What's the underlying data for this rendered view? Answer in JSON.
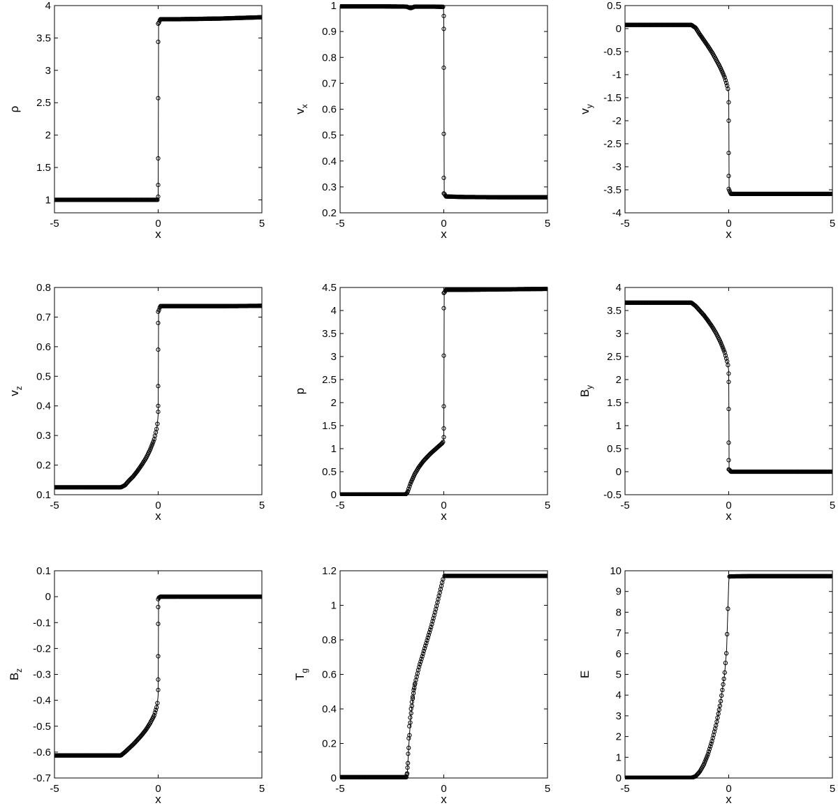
{
  "chart_data": [
    {
      "type": "line",
      "xlabel": "x",
      "ylabel": "ρ",
      "ylabel_sub": "",
      "xlim": [
        -5,
        5
      ],
      "ylim": [
        0.8,
        4
      ],
      "xticks": [
        "-5",
        "0",
        "5"
      ],
      "yticks": [
        "1",
        "1.5",
        "2",
        "2.5",
        "3",
        "3.5",
        "4"
      ],
      "ytick_values": [
        1,
        1.5,
        2,
        2.5,
        3,
        3.5,
        4
      ],
      "series": [
        {
          "x": [
            -5,
            -3,
            -1,
            -0.5,
            -0.1,
            -0.02,
            0,
            0.02,
            0.1,
            1,
            3,
            5
          ],
          "y": [
            1.0,
            1.0,
            1.0,
            1.0,
            1.0,
            1.0,
            1.05,
            3.72,
            3.79,
            3.79,
            3.8,
            3.82
          ]
        }
      ],
      "markers": [
        {
          "x": 0,
          "y": 1.05
        },
        {
          "x": 0,
          "y": 1.23
        },
        {
          "x": 0,
          "y": 1.64
        },
        {
          "x": 0,
          "y": 2.57
        },
        {
          "x": 0,
          "y": 3.44
        },
        {
          "x": 0,
          "y": 3.72
        }
      ]
    },
    {
      "type": "line",
      "xlabel": "x",
      "ylabel": "v",
      "ylabel_sub": "x",
      "xlim": [
        -5,
        5
      ],
      "ylim": [
        0.2,
        1.0
      ],
      "xticks": [
        "-5",
        "0",
        "5"
      ],
      "yticks": [
        "0.2",
        "0.3",
        "0.4",
        "0.5",
        "0.6",
        "0.7",
        "0.8",
        "0.9",
        "1"
      ],
      "ytick_values": [
        0.2,
        0.3,
        0.4,
        0.5,
        0.6,
        0.7,
        0.8,
        0.9,
        1.0
      ],
      "series": [
        {
          "x": [
            -5,
            -3,
            -1.8,
            -1.6,
            -1.4,
            -0.5,
            -0.02,
            0,
            0.02,
            0.1,
            1,
            3,
            5
          ],
          "y": [
            0.997,
            0.997,
            0.996,
            0.99,
            0.996,
            0.996,
            0.995,
            0.96,
            0.275,
            0.263,
            0.261,
            0.26,
            0.26
          ]
        }
      ],
      "markers": [
        {
          "x": 0,
          "y": 0.96
        },
        {
          "x": 0,
          "y": 0.91
        },
        {
          "x": 0,
          "y": 0.76
        },
        {
          "x": 0,
          "y": 0.505
        },
        {
          "x": 0,
          "y": 0.335
        },
        {
          "x": 0,
          "y": 0.275
        }
      ]
    },
    {
      "type": "line",
      "xlabel": "x",
      "ylabel": "v",
      "ylabel_sub": "y",
      "xlim": [
        -5,
        5
      ],
      "ylim": [
        -4,
        0.5
      ],
      "xticks": [
        "-5",
        "0",
        "5"
      ],
      "yticks": [
        "-4",
        "-3.5",
        "-3",
        "-2.5",
        "-2",
        "-1.5",
        "-1",
        "-0.5",
        "0",
        "0.5"
      ],
      "ytick_values": [
        -4,
        -3.5,
        -3,
        -2.5,
        -2,
        -1.5,
        -1,
        -0.5,
        0,
        0.5
      ],
      "series": [
        {
          "x": [
            -5,
            -3,
            -1.8,
            -1.6,
            -1.4,
            -1.2,
            -1.0,
            -0.8,
            -0.6,
            -0.4,
            -0.2,
            -0.05,
            0,
            0.02,
            0.1,
            1,
            3,
            5
          ],
          "y": [
            0.08,
            0.08,
            0.08,
            0.02,
            -0.12,
            -0.25,
            -0.38,
            -0.52,
            -0.68,
            -0.85,
            -1.05,
            -1.28,
            -1.4,
            -3.5,
            -3.59,
            -3.59,
            -3.59,
            -3.59
          ]
        }
      ],
      "markers": [
        {
          "x": 0,
          "y": -1.6
        },
        {
          "x": 0,
          "y": -2.0
        },
        {
          "x": 0,
          "y": -2.7
        },
        {
          "x": 0,
          "y": -3.2
        },
        {
          "x": 0,
          "y": -3.48
        }
      ]
    },
    {
      "type": "line",
      "xlabel": "x",
      "ylabel": "v",
      "ylabel_sub": "z",
      "xlim": [
        -5,
        5
      ],
      "ylim": [
        0.1,
        0.8
      ],
      "xticks": [
        "-5",
        "0",
        "5"
      ],
      "yticks": [
        "0.1",
        "0.2",
        "0.3",
        "0.4",
        "0.5",
        "0.6",
        "0.7",
        "0.8"
      ],
      "ytick_values": [
        0.1,
        0.2,
        0.3,
        0.4,
        0.5,
        0.6,
        0.7,
        0.8
      ],
      "series": [
        {
          "x": [
            -5,
            -3,
            -1.8,
            -1.6,
            -1.4,
            -1.2,
            -1.0,
            -0.8,
            -0.6,
            -0.4,
            -0.2,
            -0.05,
            0,
            0.02,
            0.1,
            1,
            3,
            5
          ],
          "y": [
            0.125,
            0.125,
            0.125,
            0.132,
            0.148,
            0.162,
            0.18,
            0.2,
            0.222,
            0.25,
            0.285,
            0.33,
            0.37,
            0.72,
            0.737,
            0.737,
            0.737,
            0.738
          ]
        }
      ],
      "markers": [
        {
          "x": 0,
          "y": 0.38
        },
        {
          "x": 0,
          "y": 0.4
        },
        {
          "x": 0,
          "y": 0.467
        },
        {
          "x": 0,
          "y": 0.59
        },
        {
          "x": 0,
          "y": 0.68
        },
        {
          "x": 0,
          "y": 0.718
        }
      ]
    },
    {
      "type": "line",
      "xlabel": "x",
      "ylabel": "p",
      "ylabel_sub": "",
      "xlim": [
        -5,
        5
      ],
      "ylim": [
        0,
        4.5
      ],
      "xticks": [
        "-5",
        "0",
        "5"
      ],
      "yticks": [
        "0",
        "0.5",
        "1",
        "1.5",
        "2",
        "2.5",
        "3",
        "3.5",
        "4",
        "4.5"
      ],
      "ytick_values": [
        0,
        0.5,
        1,
        1.5,
        2,
        2.5,
        3,
        3.5,
        4,
        4.5
      ],
      "series": [
        {
          "x": [
            -5,
            -3,
            -1.85,
            -1.75,
            -1.6,
            -1.4,
            -1.2,
            -1.0,
            -0.8,
            -0.6,
            -0.4,
            -0.2,
            -0.05,
            0,
            0.02,
            0.1,
            1,
            3,
            5
          ],
          "y": [
            0.005,
            0.005,
            0.005,
            0.05,
            0.25,
            0.45,
            0.6,
            0.72,
            0.82,
            0.91,
            0.99,
            1.07,
            1.13,
            1.2,
            4.38,
            4.45,
            4.45,
            4.46,
            4.47
          ]
        }
      ],
      "markers": [
        {
          "x": 0,
          "y": 1.25
        },
        {
          "x": 0,
          "y": 1.44
        },
        {
          "x": 0,
          "y": 1.92
        },
        {
          "x": 0,
          "y": 3.02
        },
        {
          "x": 0,
          "y": 4.05
        },
        {
          "x": 0,
          "y": 4.38
        }
      ]
    },
    {
      "type": "line",
      "xlabel": "x",
      "ylabel": "B",
      "ylabel_sub": "y",
      "xlim": [
        -5,
        5
      ],
      "ylim": [
        -0.5,
        4
      ],
      "xticks": [
        "-5",
        "0",
        "5"
      ],
      "yticks": [
        "-0.5",
        "0",
        "0.5",
        "1",
        "1.5",
        "2",
        "2.5",
        "3",
        "3.5",
        "4"
      ],
      "ytick_values": [
        -0.5,
        0,
        0.5,
        1,
        1.5,
        2,
        2.5,
        3,
        3.5,
        4
      ],
      "series": [
        {
          "x": [
            -5,
            -3,
            -1.8,
            -1.6,
            -1.4,
            -1.2,
            -1.0,
            -0.8,
            -0.6,
            -0.4,
            -0.2,
            -0.05,
            0,
            0.02,
            0.1,
            1,
            3,
            5
          ],
          "y": [
            3.67,
            3.67,
            3.67,
            3.6,
            3.5,
            3.4,
            3.28,
            3.15,
            3.0,
            2.82,
            2.6,
            2.35,
            2.2,
            0.05,
            0.0,
            0.0,
            0.0,
            0.0
          ]
        }
      ],
      "markers": [
        {
          "x": 0,
          "y": 2.13
        },
        {
          "x": 0,
          "y": 1.95
        },
        {
          "x": 0,
          "y": 1.36
        },
        {
          "x": 0,
          "y": 0.63
        },
        {
          "x": 0,
          "y": 0.25
        },
        {
          "x": 0,
          "y": 0.05
        }
      ]
    },
    {
      "type": "line",
      "xlabel": "x",
      "ylabel": "B",
      "ylabel_sub": "z",
      "xlim": [
        -5,
        5
      ],
      "ylim": [
        -0.7,
        0.1
      ],
      "xticks": [
        "-5",
        "0",
        "5"
      ],
      "yticks": [
        "-0.7",
        "-0.6",
        "-0.5",
        "-0.4",
        "-0.3",
        "-0.2",
        "-0.1",
        "0",
        "0.1"
      ],
      "ytick_values": [
        -0.7,
        -0.6,
        -0.5,
        -0.4,
        -0.3,
        -0.2,
        -0.1,
        0,
        0.1
      ],
      "series": [
        {
          "x": [
            -5,
            -3,
            -1.8,
            -1.6,
            -1.4,
            -1.2,
            -1.0,
            -0.8,
            -0.6,
            -0.4,
            -0.2,
            -0.05,
            0,
            0.02,
            0.1,
            1,
            3,
            5
          ],
          "y": [
            -0.613,
            -0.613,
            -0.613,
            -0.6,
            -0.585,
            -0.57,
            -0.553,
            -0.535,
            -0.515,
            -0.49,
            -0.46,
            -0.42,
            -0.38,
            -0.005,
            0.0,
            0.0,
            0.0,
            0.0
          ]
        }
      ],
      "markers": [
        {
          "x": 0,
          "y": -0.36
        },
        {
          "x": 0,
          "y": -0.32
        },
        {
          "x": 0,
          "y": -0.23
        },
        {
          "x": 0,
          "y": -0.105
        },
        {
          "x": 0,
          "y": -0.04
        },
        {
          "x": 0,
          "y": -0.01
        }
      ]
    },
    {
      "type": "line",
      "xlabel": "x",
      "ylabel": "T",
      "ylabel_sub": "g",
      "xlim": [
        -5,
        5
      ],
      "ylim": [
        0,
        1.2
      ],
      "xticks": [
        "-5",
        "0",
        "5"
      ],
      "yticks": [
        "0",
        "0.2",
        "0.4",
        "0.6",
        "0.8",
        "1",
        "1.2"
      ],
      "ytick_values": [
        0,
        0.2,
        0.4,
        0.6,
        0.8,
        1.0,
        1.2
      ],
      "series": [
        {
          "x": [
            -5,
            -3,
            -1.8,
            -1.75,
            -1.7,
            -1.6,
            -1.5,
            -1.4,
            -1.2,
            -1.0,
            -0.8,
            -0.6,
            -0.4,
            -0.2,
            0,
            0.1,
            1,
            3,
            5
          ],
          "y": [
            0.005,
            0.005,
            0.005,
            0.04,
            0.16,
            0.35,
            0.46,
            0.54,
            0.64,
            0.72,
            0.8,
            0.88,
            0.97,
            1.07,
            1.17,
            1.17,
            1.17,
            1.17,
            1.17
          ]
        }
      ],
      "markers": [
        {
          "x": -1.78,
          "y": 0.02
        },
        {
          "x": -1.75,
          "y": 0.06
        },
        {
          "x": -1.72,
          "y": 0.14
        },
        {
          "x": -1.69,
          "y": 0.23
        },
        {
          "x": -1.66,
          "y": 0.3
        },
        {
          "x": -1.62,
          "y": 0.35
        },
        {
          "x": -1.58,
          "y": 0.4
        },
        {
          "x": -1.54,
          "y": 0.44
        },
        {
          "x": -1.5,
          "y": 0.47
        },
        {
          "x": -1.45,
          "y": 0.51
        },
        {
          "x": -1.4,
          "y": 0.54
        }
      ]
    },
    {
      "type": "line",
      "xlabel": "x",
      "ylabel": "E",
      "ylabel_sub": "",
      "xlim": [
        -5,
        5
      ],
      "ylim": [
        0,
        10
      ],
      "xticks": [
        "-5",
        "0",
        "5"
      ],
      "yticks": [
        "0",
        "1",
        "2",
        "3",
        "4",
        "5",
        "6",
        "7",
        "8",
        "9",
        "10"
      ],
      "ytick_values": [
        0,
        1,
        2,
        3,
        4,
        5,
        6,
        7,
        8,
        9,
        10
      ],
      "series": [
        {
          "x": [
            -5,
            -3,
            -1.8,
            -1.6,
            -1.4,
            -1.2,
            -1.0,
            -0.8,
            -0.6,
            -0.4,
            -0.2,
            -0.1,
            0,
            0.02,
            0.1,
            1,
            3,
            5
          ],
          "y": [
            0.01,
            0.01,
            0.01,
            0.08,
            0.3,
            0.65,
            1.15,
            1.8,
            2.6,
            3.6,
            5.0,
            6.2,
            9.4,
            9.72,
            9.73,
            9.74,
            9.74,
            9.74
          ]
        }
      ],
      "markers": []
    }
  ]
}
